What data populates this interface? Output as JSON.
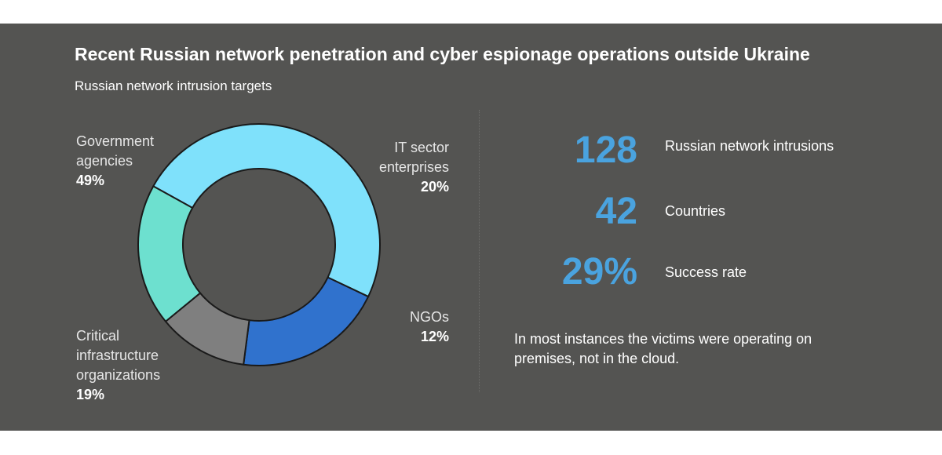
{
  "title": "Recent Russian network penetration and cyber espionage operations outside Ukraine",
  "subtitle": "Russian network intrusion targets",
  "chart_data": {
    "type": "pie",
    "variant": "donut",
    "title": "Russian network intrusion targets",
    "slices": [
      {
        "label_lines": [
          "Government",
          "agencies"
        ],
        "value": 49,
        "value_label": "49%",
        "color": "#7fe1fb"
      },
      {
        "label_lines": [
          "IT sector",
          "enterprises"
        ],
        "value": 20,
        "value_label": "20%",
        "color": "#3072cd"
      },
      {
        "label_lines": [
          "NGOs"
        ],
        "value": 12,
        "value_label": "12%",
        "color": "#7f7f7f"
      },
      {
        "label_lines": [
          "Critical",
          "infrastructure",
          "organizations"
        ],
        "value": 19,
        "value_label": "19%",
        "color": "#6de0cf"
      }
    ],
    "stroke_color": "#1a1a1a"
  },
  "stats": [
    {
      "value": "128",
      "label": "Russian network intrusions"
    },
    {
      "value": "42",
      "label": "Countries"
    },
    {
      "value": "29%",
      "label": "Success rate"
    }
  ],
  "note": "In most instances the victims were operating on premises, not in the cloud.",
  "colors": {
    "panel": "#545452",
    "accent": "#4aa3df"
  }
}
